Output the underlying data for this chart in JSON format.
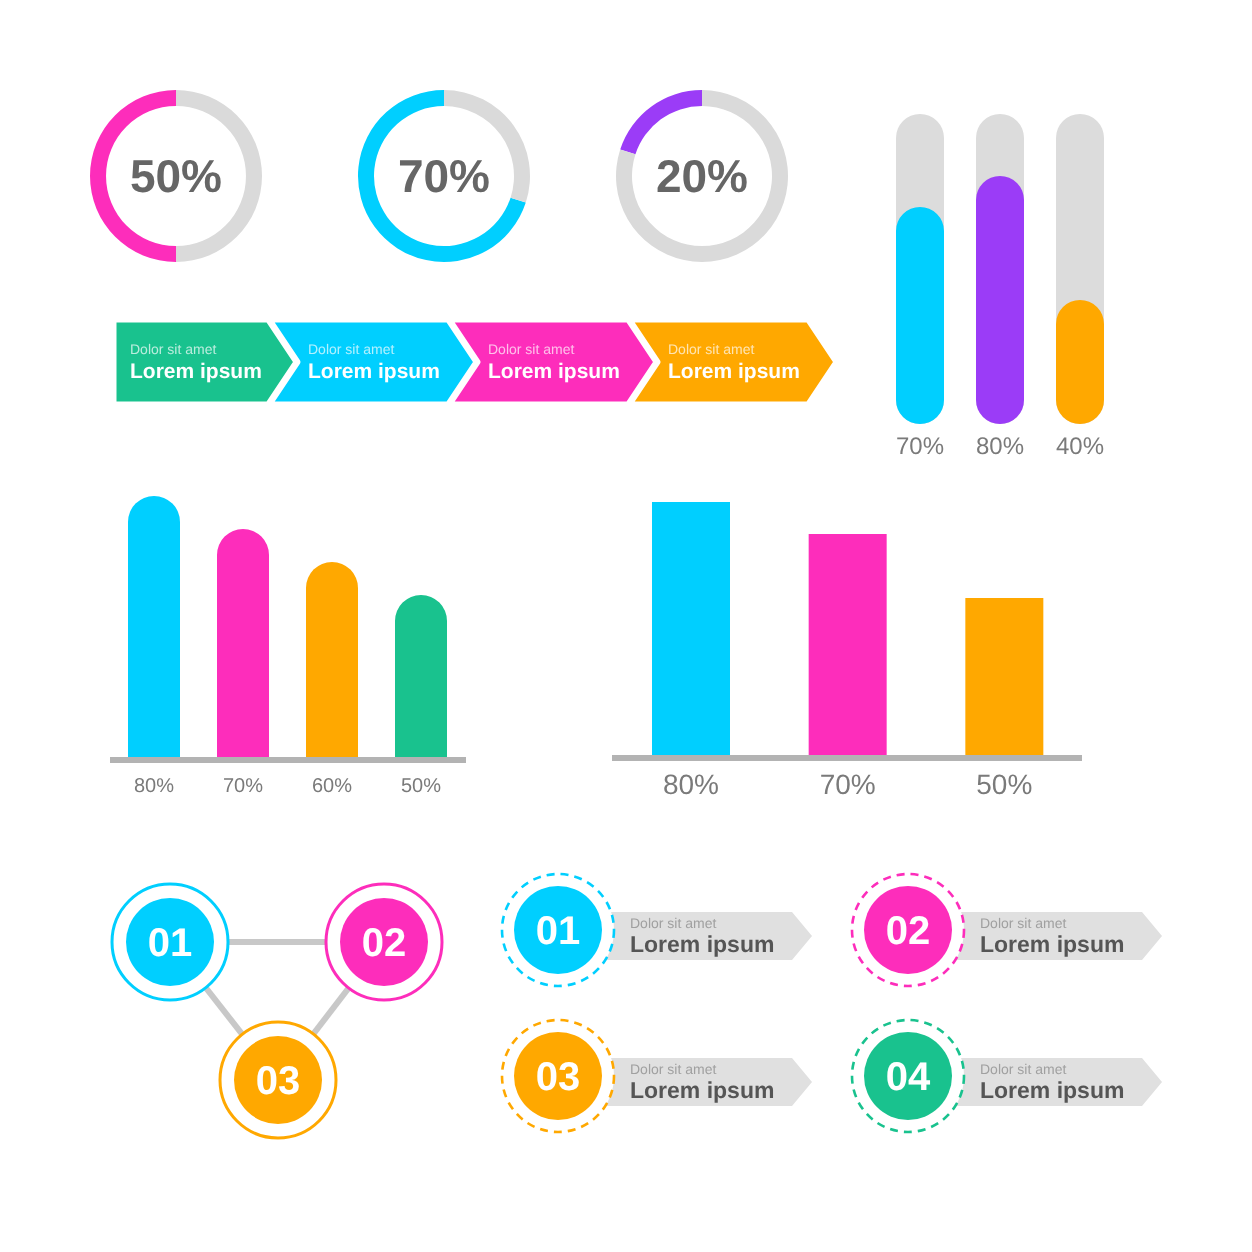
{
  "chart_data": [
    {
      "type": "donut",
      "categories": [
        null,
        null
      ],
      "values": [
        50,
        50
      ],
      "colors": [
        "#fd2dbb",
        "#dadada"
      ],
      "value_labels": [
        "50%",
        null
      ]
    },
    {
      "type": "donut",
      "categories": [
        null,
        null
      ],
      "values": [
        70,
        30
      ],
      "colors": [
        "#00cfff",
        "#dadada"
      ],
      "value_labels": [
        "70%",
        null
      ]
    },
    {
      "type": "donut",
      "categories": [
        null,
        null
      ],
      "values": [
        20,
        80
      ],
      "colors": [
        "#9b3cf7",
        "#dadada"
      ],
      "value_labels": [
        "20%",
        null
      ]
    },
    {
      "type": "other",
      "colors": [
        "#19c28e",
        "#00cfff",
        "#fd2dbb",
        "#ffa800"
      ],
      "annotations": [
        "Dolor sit amet",
        "Lorem ipsum",
        "Dolor sit amet",
        "Lorem ipsum",
        "Dolor sit amet",
        "Lorem ipsum",
        "Dolor sit amet",
        "Lorem ipsum"
      ]
    },
    {
      "type": "bar",
      "categories": [
        null,
        null,
        null
      ],
      "values": [
        70,
        80,
        40
      ],
      "colors": [
        "#00cfff",
        "#9b3cf7",
        "#ffa800"
      ],
      "ylim": [
        0,
        100
      ],
      "value_labels": [
        "70%",
        "80%",
        "40%"
      ]
    },
    {
      "type": "bar",
      "categories": [
        null,
        null,
        null,
        null
      ],
      "values": [
        80,
        70,
        60,
        50
      ],
      "colors": [
        "#00cfff",
        "#fd2dbb",
        "#ffa800",
        "#19c28e"
      ],
      "value_labels": [
        "80%",
        "70%",
        "60%",
        "50%"
      ]
    },
    {
      "type": "bar",
      "categories": [
        null,
        null,
        null
      ],
      "values": [
        80,
        70,
        50
      ],
      "colors": [
        "#00cfff",
        "#fd2dbb",
        "#ffa800"
      ],
      "value_labels": [
        "80%",
        "70%",
        "50%"
      ]
    },
    {
      "type": "other",
      "categories": [
        "01",
        "02",
        "03"
      ],
      "colors": [
        "#00cfff",
        "#fd2dbb",
        "#ffa800"
      ]
    },
    {
      "type": "other",
      "categories": [
        "01",
        "02",
        "03",
        "04"
      ],
      "colors": [
        "#00cfff",
        "#fd2dbb",
        "#ffa800",
        "#19c28e"
      ],
      "annotations": [
        "Dolor sit amet",
        "Lorem ipsum",
        "Dolor sit amet",
        "Lorem ipsum",
        "Dolor sit amet",
        "Lorem ipsum",
        "Dolor sit amet",
        "Lorem ipsum"
      ]
    }
  ]
}
